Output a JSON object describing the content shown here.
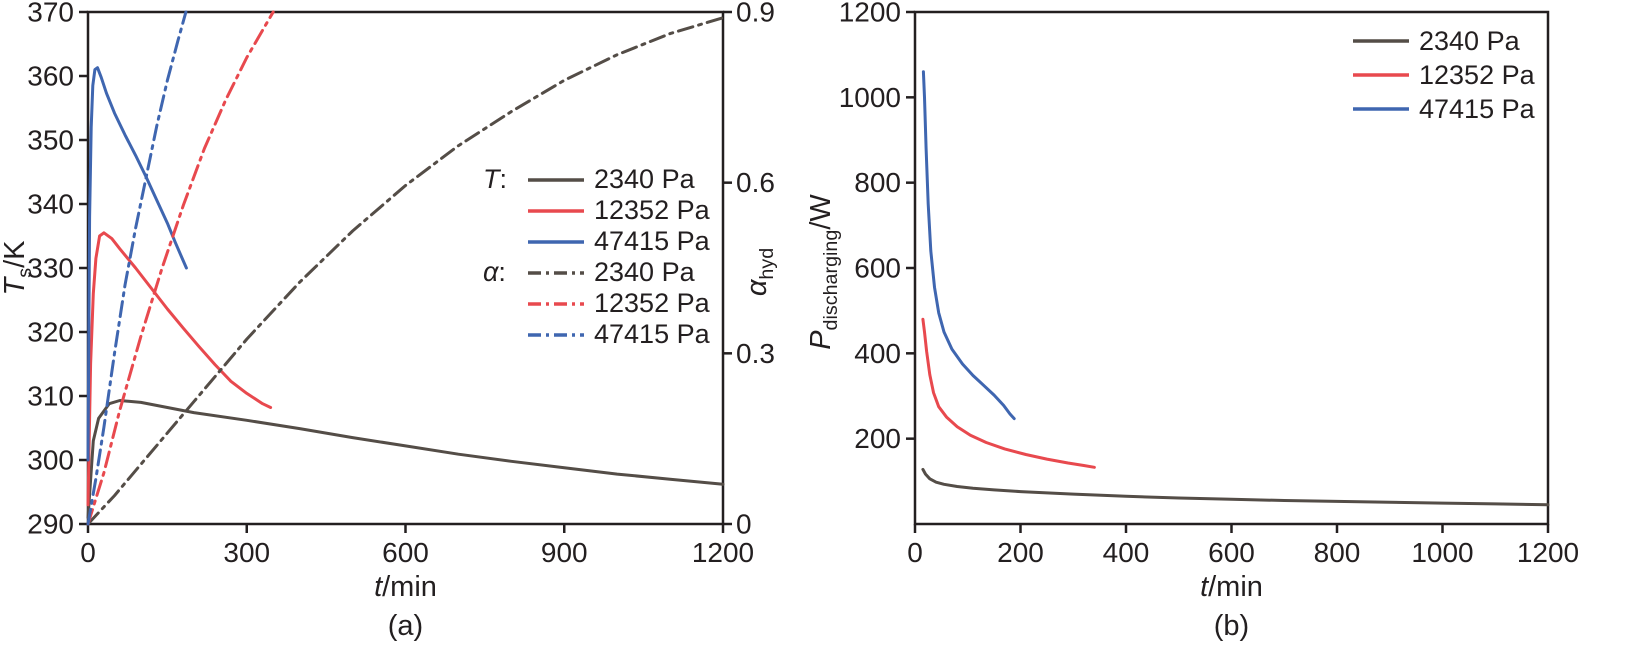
{
  "colors": {
    "gray": "#544d47",
    "red": "#e8494e",
    "blue": "#3f66b0",
    "axis": "#231f20"
  },
  "panel_a": {
    "caption": "(a)",
    "xlabel": {
      "var": "t",
      "unit": "/min"
    },
    "ylabel_left": {
      "var": "T",
      "sub": "s",
      "unit": "/K"
    },
    "ylabel_right": {
      "var": "α",
      "sub": "hyd"
    },
    "legend": {
      "t_var": "T",
      "a_var": "α",
      "colon": ":",
      "t_entries": [
        "2340 Pa",
        "12352 Pa",
        "47415 Pa"
      ],
      "a_entries": [
        "2340 Pa",
        "12352 Pa",
        "47415 Pa"
      ]
    }
  },
  "panel_b": {
    "caption": "(b)",
    "xlabel": {
      "var": "t",
      "unit": "/min"
    },
    "ylabel": {
      "var": "P",
      "sub": "discharging",
      "unit": "/W"
    },
    "legend": {
      "entries": [
        "2340 Pa",
        "12352 Pa",
        "47415 Pa"
      ]
    }
  },
  "chart_data": [
    {
      "type": "line",
      "title": "",
      "xlabel": "t/min",
      "ylabel_left": "Ts/K",
      "ylabel_right": "α_hyd",
      "xlim": [
        0,
        1200
      ],
      "xticks": [
        0,
        300,
        600,
        900,
        1200
      ],
      "left": {
        "lim": [
          290,
          370
        ],
        "ticks": [
          290,
          300,
          310,
          320,
          330,
          340,
          350,
          360,
          370
        ]
      },
      "right": {
        "lim": [
          0,
          0.9
        ],
        "ticks": [
          0,
          0.3,
          0.6,
          0.9
        ]
      },
      "grid": false,
      "legend_position": "center-right",
      "series": [
        {
          "name": "T 2340 Pa",
          "axis": "left",
          "style": "solid",
          "color_key": "gray",
          "points": [
            [
              0,
              291
            ],
            [
              10,
              303
            ],
            [
              20,
              306.5
            ],
            [
              40,
              308.8
            ],
            [
              60,
              309.3
            ],
            [
              100,
              309
            ],
            [
              150,
              308.2
            ],
            [
              200,
              307.4
            ],
            [
              300,
              306.2
            ],
            [
              400,
              304.9
            ],
            [
              500,
              303.5
            ],
            [
              600,
              302.2
            ],
            [
              700,
              300.9
            ],
            [
              800,
              299.8
            ],
            [
              900,
              298.8
            ],
            [
              1000,
              297.8
            ],
            [
              1100,
              297
            ],
            [
              1200,
              296.2
            ]
          ]
        },
        {
          "name": "T 12352 Pa",
          "axis": "left",
          "style": "solid",
          "color_key": "red",
          "points": [
            [
              0,
              293
            ],
            [
              5,
              315
            ],
            [
              10,
              326
            ],
            [
              15,
              331.5
            ],
            [
              22,
              335
            ],
            [
              30,
              335.5
            ],
            [
              45,
              334.6
            ],
            [
              60,
              333
            ],
            [
              90,
              330
            ],
            [
              120,
              326.8
            ],
            [
              150,
              323.6
            ],
            [
              180,
              320.6
            ],
            [
              210,
              317.7
            ],
            [
              240,
              314.9
            ],
            [
              270,
              312.3
            ],
            [
              300,
              310.4
            ],
            [
              330,
              308.8
            ],
            [
              345,
              308.2
            ]
          ]
        },
        {
          "name": "T 47415 Pa",
          "axis": "left",
          "style": "solid",
          "color_key": "blue",
          "points": [
            [
              0,
              300
            ],
            [
              3,
              338
            ],
            [
              6,
              352
            ],
            [
              9,
              358.5
            ],
            [
              13,
              361
            ],
            [
              18,
              361.3
            ],
            [
              25,
              359.8
            ],
            [
              35,
              357.3
            ],
            [
              50,
              354.2
            ],
            [
              70,
              350.8
            ],
            [
              90,
              347.6
            ],
            [
              110,
              344.2
            ],
            [
              130,
              340.6
            ],
            [
              150,
              337
            ],
            [
              165,
              334
            ],
            [
              178,
              331.5
            ],
            [
              186,
              330
            ]
          ]
        },
        {
          "name": "α 2340 Pa",
          "axis": "right",
          "style": "dashdot",
          "color_key": "gray",
          "points": [
            [
              0,
              0
            ],
            [
              50,
              0.05
            ],
            [
              100,
              0.105
            ],
            [
              200,
              0.215
            ],
            [
              300,
              0.325
            ],
            [
              400,
              0.425
            ],
            [
              500,
              0.515
            ],
            [
              600,
              0.595
            ],
            [
              700,
              0.665
            ],
            [
              800,
              0.725
            ],
            [
              900,
              0.78
            ],
            [
              1000,
              0.825
            ],
            [
              1100,
              0.862
            ],
            [
              1200,
              0.89
            ]
          ]
        },
        {
          "name": "α 12352 Pa",
          "axis": "right",
          "style": "dashdot",
          "color_key": "red",
          "points": [
            [
              0,
              0
            ],
            [
              30,
              0.09
            ],
            [
              60,
              0.2
            ],
            [
              100,
              0.33
            ],
            [
              140,
              0.45
            ],
            [
              180,
              0.56
            ],
            [
              220,
              0.66
            ],
            [
              260,
              0.745
            ],
            [
              300,
              0.82
            ],
            [
              330,
              0.868
            ],
            [
              350,
              0.9
            ]
          ]
        },
        {
          "name": "α 47415 Pa",
          "axis": "right",
          "style": "dashdot",
          "color_key": "blue",
          "points": [
            [
              0,
              0
            ],
            [
              15,
              0.08
            ],
            [
              30,
              0.17
            ],
            [
              50,
              0.3
            ],
            [
              70,
              0.42
            ],
            [
              90,
              0.52
            ],
            [
              110,
              0.61
            ],
            [
              130,
              0.7
            ],
            [
              150,
              0.78
            ],
            [
              170,
              0.85
            ],
            [
              185,
              0.9
            ]
          ]
        }
      ]
    },
    {
      "type": "line",
      "title": "",
      "xlabel": "t/min",
      "ylabel_left": "P_discharging/W",
      "xlim": [
        0,
        1200
      ],
      "xticks": [
        0,
        200,
        400,
        600,
        800,
        1000,
        1200
      ],
      "left": {
        "lim": [
          0,
          1200
        ],
        "ticks": [
          200,
          400,
          600,
          800,
          1000,
          1200
        ]
      },
      "grid": false,
      "legend_position": "top-right",
      "series": [
        {
          "name": "2340 Pa",
          "axis": "left",
          "style": "solid",
          "color_key": "gray",
          "points": [
            [
              15,
              128
            ],
            [
              20,
              117
            ],
            [
              28,
              106
            ],
            [
              40,
              98
            ],
            [
              55,
              93
            ],
            [
              80,
              88
            ],
            [
              110,
              84
            ],
            [
              150,
              80
            ],
            [
              200,
              76
            ],
            [
              300,
              70
            ],
            [
              400,
              65
            ],
            [
              500,
              61
            ],
            [
              600,
              58
            ],
            [
              700,
              55
            ],
            [
              800,
              53
            ],
            [
              900,
              51
            ],
            [
              1000,
              49
            ],
            [
              1100,
              47
            ],
            [
              1200,
              45
            ]
          ]
        },
        {
          "name": "12352 Pa",
          "axis": "left",
          "style": "solid",
          "color_key": "red",
          "points": [
            [
              15,
              480
            ],
            [
              18,
              450
            ],
            [
              22,
              405
            ],
            [
              28,
              350
            ],
            [
              35,
              308
            ],
            [
              45,
              275
            ],
            [
              60,
              250
            ],
            [
              80,
              228
            ],
            [
              105,
              208
            ],
            [
              135,
              191
            ],
            [
              170,
              176
            ],
            [
              210,
              163
            ],
            [
              250,
              152
            ],
            [
              290,
              143
            ],
            [
              320,
              137
            ],
            [
              340,
              133
            ]
          ]
        },
        {
          "name": "47415 Pa",
          "axis": "left",
          "style": "solid",
          "color_key": "blue",
          "points": [
            [
              16,
              1060
            ],
            [
              18,
              1000
            ],
            [
              21,
              880
            ],
            [
              25,
              750
            ],
            [
              30,
              640
            ],
            [
              37,
              555
            ],
            [
              45,
              495
            ],
            [
              55,
              450
            ],
            [
              70,
              410
            ],
            [
              90,
              375
            ],
            [
              110,
              348
            ],
            [
              130,
              325
            ],
            [
              150,
              302
            ],
            [
              168,
              278
            ],
            [
              180,
              258
            ],
            [
              188,
              247
            ]
          ]
        }
      ]
    }
  ]
}
